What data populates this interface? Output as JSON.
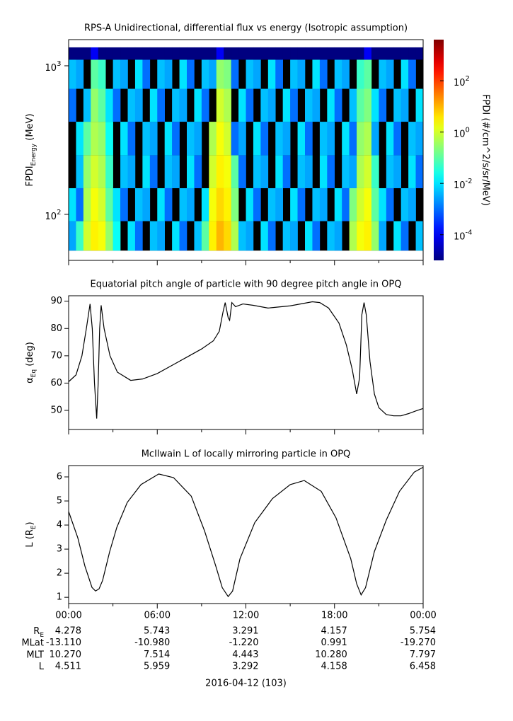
{
  "chart_data": [
    {
      "type": "heatmap",
      "title": "RPS-A Unidirectional, differential flux vs energy (Isotropic assumption)",
      "y_label": {
        "text": "FPDI",
        "sub": "Energy",
        "unit": " (MeV)"
      },
      "colorbar_label": "FPDI (#/cm^2/s/sr/MeV)",
      "x_bins": [
        0,
        0.5,
        1,
        1.5,
        2,
        2.5,
        3,
        3.5,
        4,
        4.5,
        5,
        5.5,
        6,
        6.5,
        7,
        7.5,
        8,
        8.5,
        9,
        9.5,
        10,
        10.5,
        11,
        11.5,
        12,
        12.5,
        13,
        13.5,
        14,
        14.5,
        15,
        15.5,
        16,
        16.5,
        17,
        17.5,
        18,
        18.5,
        19,
        19.5,
        20,
        20.5,
        21,
        21.5,
        22,
        22.5,
        23,
        23.5,
        24
      ],
      "y_bins": [
        57,
        90,
        150,
        250,
        420,
        700,
        1100,
        1330
      ],
      "z": [
        [
          0.003,
          0.05,
          1,
          3,
          2,
          0.3,
          0.02,
          null,
          0.01,
          0.001,
          null,
          0.005,
          0.003,
          null,
          0.01,
          0.001,
          null,
          0.005,
          0.1,
          3,
          10,
          5,
          0.5,
          0.005,
          0.003,
          null,
          0.01,
          0.001,
          null,
          0.005,
          0.003,
          null,
          0.01,
          0.001,
          null,
          0.005,
          0.003,
          null,
          0.5,
          2,
          3,
          0.3,
          0.003,
          null,
          0.01,
          0.001,
          null,
          0.005
        ],
        [
          0.01,
          0.001,
          0.5,
          2,
          1,
          0.1,
          0.01,
          0.001,
          null,
          0.005,
          0.003,
          null,
          0.01,
          0.001,
          null,
          0.005,
          0.003,
          null,
          0.01,
          2,
          5,
          3,
          0.2,
          null,
          0.01,
          0.001,
          null,
          0.005,
          0.003,
          null,
          0.01,
          0.001,
          null,
          0.005,
          0.003,
          null,
          0.01,
          0.001,
          0.2,
          1,
          2,
          0.1,
          0.01,
          0.001,
          null,
          0.005,
          0.003,
          null
        ],
        [
          null,
          0.005,
          0.3,
          1,
          0.5,
          0.05,
          null,
          0.005,
          0.003,
          null,
          0.01,
          0.001,
          null,
          0.005,
          0.003,
          null,
          0.01,
          0.001,
          null,
          1,
          3,
          2,
          0.1,
          0.001,
          null,
          0.005,
          0.003,
          null,
          0.01,
          0.001,
          null,
          0.005,
          0.003,
          null,
          0.01,
          0.001,
          null,
          0.005,
          0.003,
          0.5,
          1,
          0.05,
          null,
          0.005,
          0.003,
          null,
          0.01,
          0.001
        ],
        [
          null,
          0.01,
          0.1,
          0.5,
          0.3,
          0.02,
          null,
          0.01,
          0.001,
          null,
          0.005,
          0.003,
          null,
          0.01,
          0.001,
          null,
          0.005,
          0.003,
          null,
          0.5,
          2,
          1,
          0.001,
          0.003,
          null,
          0.01,
          0.001,
          null,
          0.005,
          0.003,
          null,
          0.01,
          0.001,
          null,
          0.005,
          0.003,
          null,
          0.01,
          0.001,
          0.3,
          0.5,
          0.003,
          null,
          0.01,
          0.001,
          null,
          0.005,
          0.003
        ],
        [
          0.001,
          null,
          0.005,
          0.3,
          0.1,
          0.01,
          0.001,
          null,
          0.005,
          0.003,
          null,
          0.01,
          0.001,
          null,
          0.005,
          0.003,
          null,
          0.01,
          0.001,
          null,
          1,
          0.5,
          null,
          0.01,
          0.001,
          null,
          0.005,
          0.003,
          null,
          0.01,
          0.001,
          null,
          0.005,
          0.003,
          null,
          0.01,
          0.001,
          null,
          0.005,
          0.1,
          0.2,
          0.01,
          0.001,
          null,
          0.005,
          0.003,
          null,
          0.01
        ],
        [
          0.005,
          0.003,
          null,
          0.1,
          0.05,
          null,
          0.005,
          0.003,
          null,
          0.01,
          0.001,
          null,
          0.005,
          0.003,
          null,
          0.01,
          0.001,
          null,
          0.005,
          0.003,
          0.3,
          0.2,
          0.001,
          null,
          0.005,
          0.003,
          null,
          0.01,
          0.001,
          null,
          0.005,
          0.003,
          null,
          0.01,
          0.001,
          null,
          0.005,
          0.003,
          null,
          0.05,
          0.1,
          null,
          0.005,
          0.003,
          null,
          0.01,
          0.001,
          null
        ],
        [
          1e-05,
          1e-05,
          1e-05,
          0.0001,
          1e-05,
          1e-05,
          1e-05,
          1e-05,
          1e-05,
          1e-05,
          1e-05,
          1e-05,
          1e-05,
          1e-05,
          1e-05,
          1e-05,
          1e-05,
          1e-05,
          1e-05,
          1e-05,
          0.0001,
          1e-05,
          1e-05,
          1e-05,
          1e-05,
          1e-05,
          1e-05,
          1e-05,
          1e-05,
          1e-05,
          1e-05,
          1e-05,
          1e-05,
          1e-05,
          1e-05,
          1e-05,
          1e-05,
          1e-05,
          1e-05,
          1e-05,
          0.0001,
          1e-05,
          1e-05,
          1e-05,
          1e-05,
          1e-05,
          1e-05,
          1e-05
        ]
      ],
      "xlim": [
        0,
        24
      ],
      "ylim": [
        49,
        1500
      ],
      "y_log": true,
      "yticks": [
        {
          "value": 100,
          "label": "10",
          "exponent": "2"
        },
        {
          "value": 1000,
          "label": "10",
          "exponent": "3"
        }
      ],
      "clim": [
        1e-05,
        4000
      ],
      "c_log": true,
      "colormap": "jet",
      "cticks": [
        {
          "value": 0.0001,
          "label": "10",
          "exponent": "-4"
        },
        {
          "value": 0.01,
          "label": "10",
          "exponent": "-2"
        },
        {
          "value": 1,
          "label": "10",
          "exponent": "0"
        },
        {
          "value": 100,
          "label": "10",
          "exponent": "2"
        }
      ]
    },
    {
      "type": "line",
      "title": "Equatorial pitch angle of particle with 90 degree pitch angle in OPQ",
      "y_label": {
        "text": "α",
        "sub": "Eq",
        "unit": " (deg)"
      },
      "x": [
        0,
        0.5,
        0.9,
        1.2,
        1.45,
        1.6,
        1.75,
        1.9,
        2.0,
        2.1,
        2.2,
        2.4,
        2.8,
        3.3,
        4.2,
        5,
        6,
        7,
        8,
        9,
        9.8,
        10.2,
        10.45,
        10.6,
        10.8,
        10.9,
        11.05,
        11.3,
        11.8,
        12.5,
        13.5,
        15,
        16.5,
        17,
        17.6,
        18.3,
        18.8,
        19.2,
        19.5,
        19.7,
        19.85,
        20,
        20.15,
        20.4,
        20.7,
        21,
        21.5,
        22,
        22.5,
        23,
        23.5,
        24
      ],
      "series": [
        {
          "color": "#000000",
          "values": [
            60.5,
            63,
            70,
            80,
            89,
            80,
            60,
            47,
            60,
            80,
            88.5,
            80,
            70,
            64,
            61,
            61.5,
            63.5,
            66.5,
            69.5,
            72.5,
            75.5,
            79,
            86,
            89.5,
            84,
            83,
            89.5,
            88,
            89,
            88.5,
            87.5,
            88.3,
            89.8,
            89.5,
            87.5,
            82,
            74,
            65,
            56,
            62,
            85,
            89.5,
            85,
            68,
            56,
            51,
            48.5,
            48,
            48,
            48.8,
            49.8,
            50.7
          ]
        }
      ],
      "xlim": [
        0,
        24
      ],
      "ylim": [
        43,
        92
      ],
      "yticks": [
        50,
        60,
        70,
        80,
        90
      ]
    },
    {
      "type": "line",
      "title": "McIlwain L of locally mirroring particle in OPQ",
      "y_label": {
        "text": "L (R",
        "sub": "E",
        "unit": ")"
      },
      "x": [
        0,
        0.62,
        1.1,
        1.58,
        1.82,
        2.06,
        2.3,
        2.78,
        3.26,
        3.97,
        4.9,
        6.1,
        7.1,
        8.3,
        9.2,
        9.96,
        10.4,
        10.8,
        11.1,
        11.6,
        12.6,
        13.8,
        15,
        15.95,
        17.1,
        18.1,
        19.1,
        19.5,
        19.8,
        20.1,
        20.7,
        21.5,
        22.4,
        23.4,
        24
      ],
      "series": [
        {
          "color": "#000000",
          "values": [
            4.56,
            3.47,
            2.3,
            1.41,
            1.26,
            1.35,
            1.7,
            2.9,
            3.9,
            4.94,
            5.68,
            6.12,
            5.97,
            5.2,
            3.76,
            2.3,
            1.4,
            1.03,
            1.26,
            2.6,
            4.1,
            5.1,
            5.68,
            5.85,
            5.4,
            4.3,
            2.6,
            1.56,
            1.1,
            1.4,
            2.9,
            4.2,
            5.4,
            6.2,
            6.4
          ]
        }
      ],
      "xlim": [
        0,
        24
      ],
      "xticks": [
        {
          "value": 0,
          "label": "00:00"
        },
        {
          "value": 6,
          "label": "06:00"
        },
        {
          "value": 12,
          "label": "12:00"
        },
        {
          "value": 18,
          "label": "18:00"
        },
        {
          "value": 24,
          "label": "00:00"
        }
      ],
      "x_minor_ticks": [
        3,
        9,
        15,
        21
      ],
      "ylim": [
        0.74,
        6.47
      ],
      "yticks": [
        1,
        2,
        3,
        4,
        5,
        6
      ]
    }
  ],
  "ephemeris": {
    "rows": [
      {
        "label": "R",
        "sub": "E",
        "values": [
          "4.278",
          "5.743",
          "3.291",
          "4.157",
          "5.754"
        ]
      },
      {
        "label": "MLat",
        "values": [
          "-13.110",
          "-10.980",
          "-1.220",
          "0.991",
          "-19.270"
        ]
      },
      {
        "label": "MLT",
        "values": [
          "10.270",
          "7.514",
          "4.443",
          "10.280",
          "7.797"
        ]
      },
      {
        "label": "L",
        "values": [
          "4.511",
          "5.959",
          "3.292",
          "4.158",
          "6.458"
        ]
      }
    ],
    "date": "2016-04-12 (103)"
  }
}
